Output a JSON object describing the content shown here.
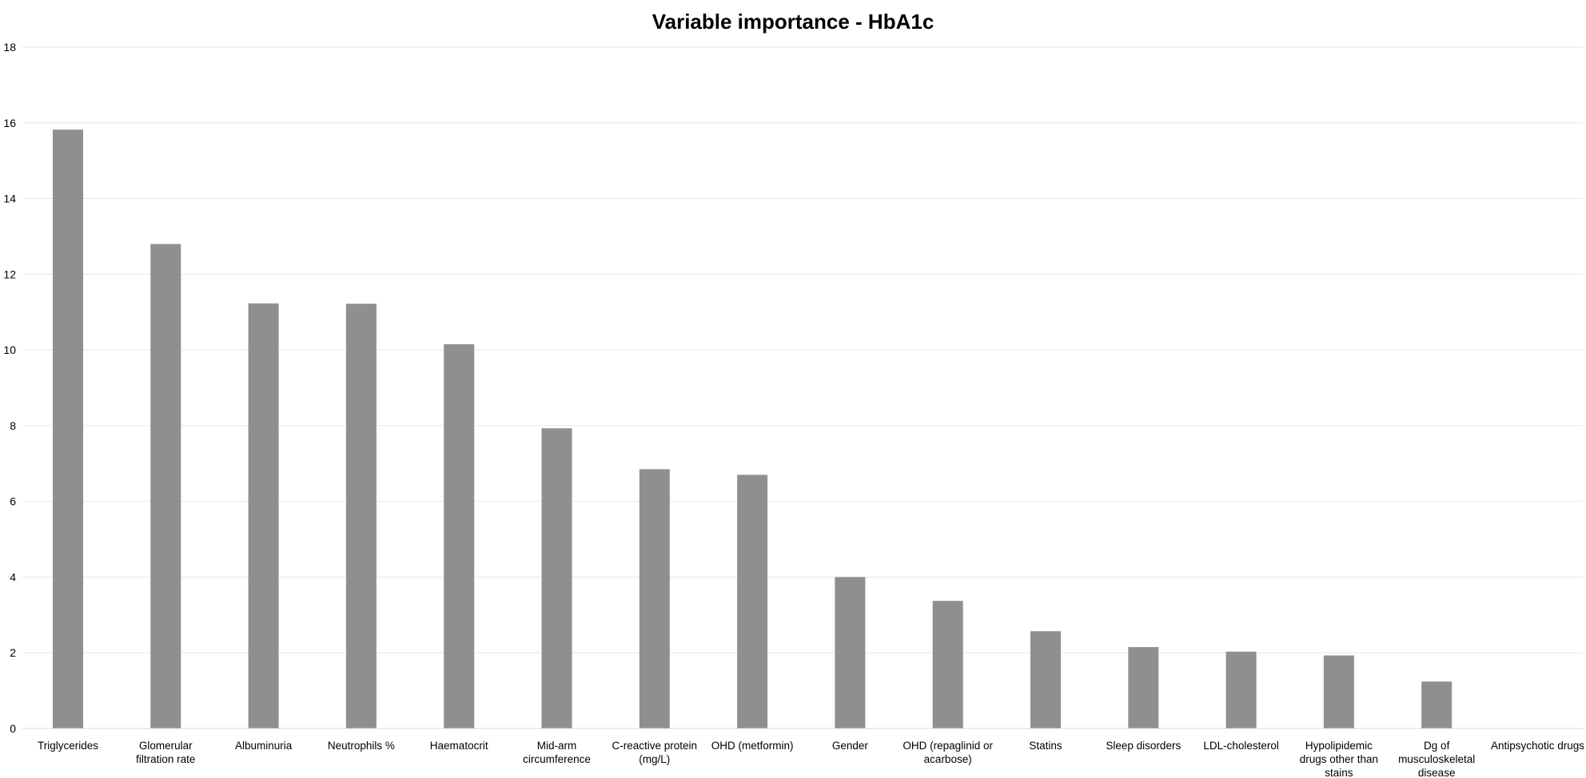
{
  "chart_data": {
    "type": "bar",
    "title": "Variable importance - HbA1c",
    "xlabel": "",
    "ylabel": "",
    "ylim": [
      0,
      18
    ],
    "yticks": [
      0,
      2,
      4,
      6,
      8,
      10,
      12,
      14,
      16,
      18
    ],
    "grid": true,
    "legend": "none",
    "bar_color": "#8f8f8f",
    "categories": [
      "Triglycerides",
      "Glomerular filtration rate",
      "Albuminuria",
      "Neutrophils %",
      "Haematocrit",
      "Mid-arm circumference",
      "C-reactive protein (mg/L)",
      "OHD (metformin)",
      "Gender",
      "OHD (repaglinid or acarbose)",
      "Statins",
      "Sleep disorders",
      "LDL-cholesterol",
      "Hypolipidemic drugs other than stains",
      "Dg of musculoskeletal disease",
      "Antipsychotic drugs"
    ],
    "category_lines": [
      [
        "Triglycerides"
      ],
      [
        "Glomerular",
        "filtration rate"
      ],
      [
        "Albuminuria"
      ],
      [
        "Neutrophils %"
      ],
      [
        "Haematocrit"
      ],
      [
        "Mid-arm",
        "circumference"
      ],
      [
        "C-reactive protein",
        "(mg/L)"
      ],
      [
        "OHD (metformin)"
      ],
      [
        "Gender"
      ],
      [
        "OHD (repaglinid or",
        "acarbose)"
      ],
      [
        "Statins"
      ],
      [
        "Sleep disorders"
      ],
      [
        "LDL-cholesterol"
      ],
      [
        "Hypolipidemic",
        "drugs other than",
        "stains"
      ],
      [
        "Dg of",
        "musculoskeletal",
        "disease"
      ],
      [
        "Antipsychotic drugs"
      ]
    ],
    "values": [
      15.82,
      12.8,
      11.23,
      11.22,
      10.15,
      7.93,
      6.85,
      6.7,
      4.0,
      3.37,
      2.57,
      2.15,
      2.03,
      1.93,
      1.24,
      0.0
    ]
  }
}
